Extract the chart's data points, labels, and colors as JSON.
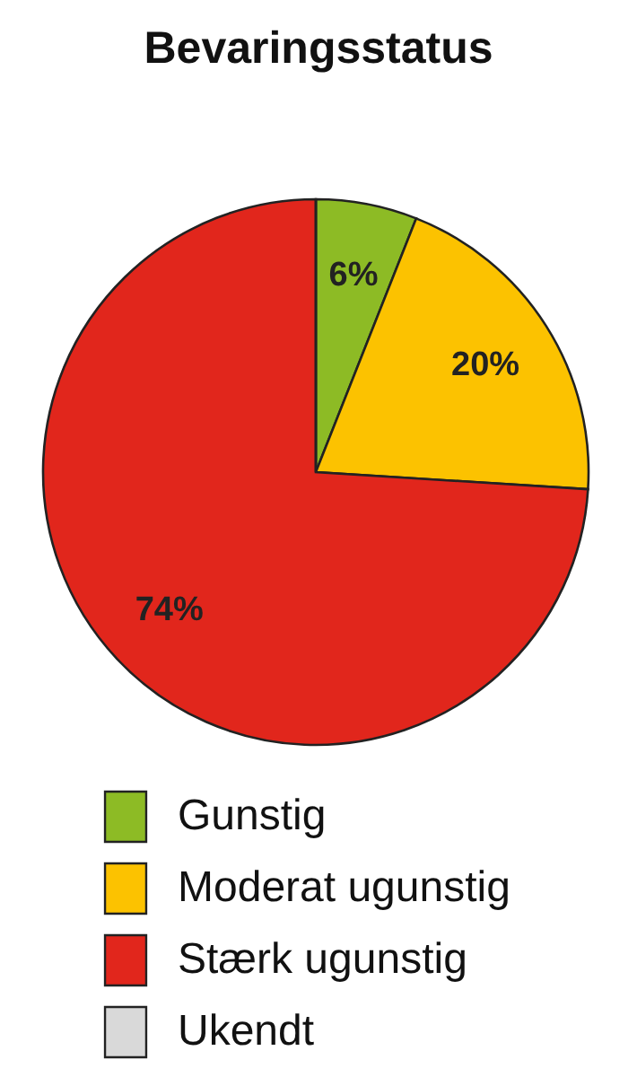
{
  "chart_data": {
    "type": "pie",
    "title": "Bevaringsstatus",
    "categories": [
      "Gunstig",
      "Moderat ugunstig",
      "Stærk ugunstig",
      "Ukendt"
    ],
    "values": [
      6,
      20,
      74,
      0
    ],
    "colors": [
      "#8dbb25",
      "#fcc200",
      "#e1261c",
      "#d9d9d9"
    ],
    "value_labels": [
      "6%",
      "20%",
      "74%",
      null
    ],
    "legend": "bottom"
  }
}
